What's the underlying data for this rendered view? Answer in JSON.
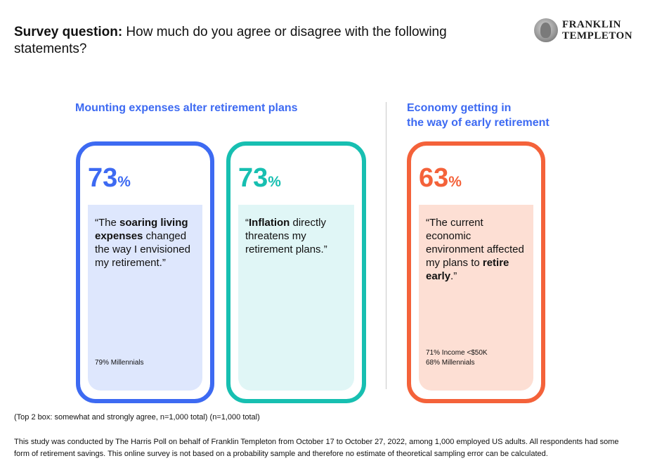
{
  "header": {
    "question_label": "Survey question:",
    "question_text": " How much do you agree or disagree with the following statements?"
  },
  "logo": {
    "line1": "FRANKLIN",
    "line2": "TEMPLETON"
  },
  "sections": [
    {
      "title": "Mounting expenses alter retirement plans"
    },
    {
      "title_line1": "Economy getting in",
      "title_line2": "the way of early retirement"
    }
  ],
  "cards": [
    {
      "value": "73",
      "sign": "%",
      "quote_parts": [
        "“The ",
        "soaring living expenses",
        " changed the way I envisioned my retirement.”"
      ],
      "notes": [
        "79% Millennials"
      ],
      "color": "#3d6af2"
    },
    {
      "value": "73",
      "sign": "%",
      "quote_parts": [
        "“",
        "Inflation",
        " directly threatens my retirement plans.”"
      ],
      "notes": [],
      "color": "#17bfb1"
    },
    {
      "value": "63",
      "sign": "%",
      "quote_parts": [
        "“The current economic environment affected my plans to ",
        "retire early",
        ".”"
      ],
      "notes": [
        "71% Income <$50K",
        "68% Millennials"
      ],
      "color": "#f4623a"
    }
  ],
  "footnote": "(Top 2 box: somewhat and strongly agree, n=1,000 total) (n=1,000 total)",
  "study_note": "This study was conducted by The Harris Poll on behalf of Franklin Templeton from October 17 to October 27, 2022, among 1,000 employed US adults. All respondents had some form of retirement savings. This online survey is not based on a probability sample and therefore no estimate of theoretical sampling error can be calculated."
}
